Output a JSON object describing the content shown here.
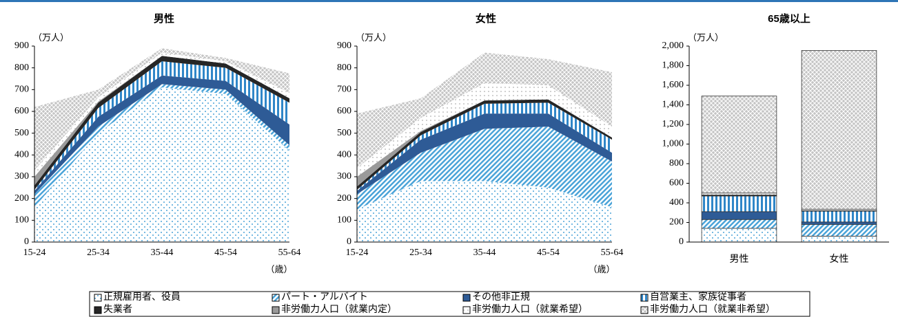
{
  "legend": [
    {
      "name": "正規雇用者、役員",
      "pattern": "dots",
      "color": "#4aa3d8"
    },
    {
      "name": "パート・アルバイト",
      "pattern": "diag",
      "color": "#4aa3d8"
    },
    {
      "name": "その他非正規",
      "pattern": "solid",
      "color": "#2e5b96"
    },
    {
      "name": "自営業主、家族従事者",
      "pattern": "vstripe",
      "color": "#2f86c8"
    },
    {
      "name": "失業者",
      "pattern": "solid",
      "color": "#262626"
    },
    {
      "name": "非労働力人口（就業内定）",
      "pattern": "solid",
      "color": "#9a9a9a"
    },
    {
      "name": "非労働力人口（就業希望）",
      "pattern": "grid",
      "color": "#c8c8c8"
    },
    {
      "name": "非労働力人口（就業非希望）",
      "pattern": "cross",
      "color": "#9a9a9a"
    }
  ],
  "chart_data": [
    {
      "type": "area",
      "title": "男性",
      "y_unit": "（万人）",
      "x_unit": "（歳）",
      "categories": [
        "15-24",
        "25-34",
        "35-44",
        "45-54",
        "55-64"
      ],
      "ylim": [
        0,
        900
      ],
      "yticks": [
        0,
        100,
        200,
        300,
        400,
        500,
        600,
        700,
        800,
        900
      ],
      "series": [
        {
          "values": [
            160,
            500,
            710,
            680,
            420
          ]
        },
        {
          "values": [
            60,
            30,
            15,
            20,
            25
          ]
        },
        {
          "values": [
            15,
            45,
            40,
            40,
            95
          ]
        },
        {
          "values": [
            5,
            40,
            65,
            60,
            100
          ]
        },
        {
          "values": [
            20,
            25,
            25,
            20,
            20
          ]
        },
        {
          "values": [
            40,
            5,
            0,
            0,
            0
          ]
        },
        {
          "values": [
            30,
            20,
            15,
            10,
            25
          ]
        },
        {
          "values": [
            290,
            35,
            20,
            15,
            90
          ]
        }
      ]
    },
    {
      "type": "area",
      "title": "女性",
      "y_unit": "（万人）",
      "x_unit": "（歳）",
      "categories": [
        "15-24",
        "25-34",
        "35-44",
        "45-54",
        "55-64"
      ],
      "ylim": [
        0,
        900
      ],
      "yticks": [
        0,
        100,
        200,
        300,
        400,
        500,
        600,
        700,
        800,
        900
      ],
      "series": [
        {
          "values": [
            150,
            280,
            280,
            250,
            160
          ]
        },
        {
          "values": [
            70,
            130,
            240,
            280,
            210
          ]
        },
        {
          "values": [
            15,
            60,
            70,
            60,
            40
          ]
        },
        {
          "values": [
            5,
            20,
            45,
            50,
            60
          ]
        },
        {
          "values": [
            15,
            15,
            15,
            15,
            10
          ]
        },
        {
          "values": [
            45,
            5,
            0,
            0,
            0
          ]
        },
        {
          "values": [
            40,
            60,
            80,
            65,
            50
          ]
        },
        {
          "values": [
            250,
            90,
            140,
            120,
            250
          ]
        }
      ]
    },
    {
      "type": "bar",
      "title": "65歳以上",
      "y_unit": "（万人）",
      "categories": [
        "男性",
        "女性"
      ],
      "ylim": [
        0,
        2000
      ],
      "yticks": [
        0,
        200,
        400,
        600,
        800,
        {
          "value": 1000,
          "label": "1,000"
        },
        {
          "value": 1200,
          "label": "1,200"
        },
        {
          "value": 1400,
          "label": "1,400"
        },
        {
          "value": 1600,
          "label": "1,600"
        },
        {
          "value": 1800,
          "label": "1,800"
        },
        {
          "value": 2000,
          "label": "2,000"
        }
      ],
      "series": [
        {
          "values": [
            140,
            60
          ]
        },
        {
          "values": [
            90,
            120
          ]
        },
        {
          "values": [
            80,
            25
          ]
        },
        {
          "values": [
            160,
            110
          ]
        },
        {
          "values": [
            10,
            5
          ]
        },
        {
          "values": [
            0,
            0
          ]
        },
        {
          "values": [
            20,
            15
          ]
        },
        {
          "values": [
            990,
            1620
          ]
        }
      ]
    }
  ]
}
